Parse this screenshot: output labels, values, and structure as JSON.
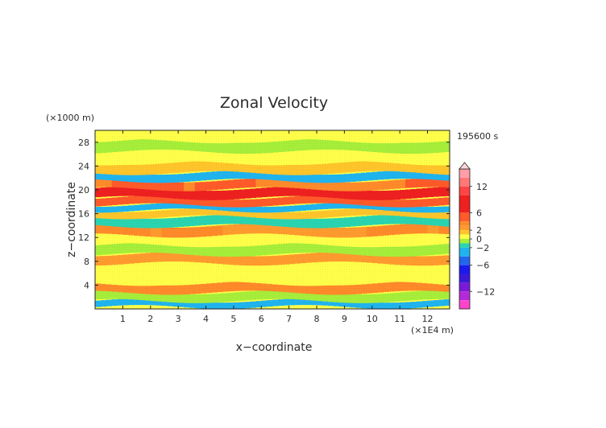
{
  "chart_data": {
    "type": "heatmap",
    "title": "Zonal Velocity",
    "xlabel": "x−coordinate",
    "ylabel": "z−coordinate",
    "x_unit": "(×1E4 m)",
    "y_unit": "(×1000 m)",
    "time_label": "195600 s",
    "xlim": [
      0,
      12.8
    ],
    "ylim": [
      0,
      30
    ],
    "x_ticks": [
      "1",
      "2",
      "3",
      "4",
      "5",
      "6",
      "7",
      "8",
      "9",
      "10",
      "11",
      "12"
    ],
    "y_ticks": [
      "4",
      "8",
      "12",
      "16",
      "20",
      "24",
      "28"
    ],
    "grid": false,
    "colorbar": {
      "placement": "right",
      "tick_labels": [
        "12",
        "6",
        "2",
        "0",
        "−2",
        "−6",
        "−12"
      ],
      "levels": [
        {
          "from": 14,
          "to": 16,
          "color": "#ff9ea8"
        },
        {
          "from": 12,
          "to": 14,
          "color": "#ff7878"
        },
        {
          "from": 10,
          "to": 12,
          "color": "#ff4444"
        },
        {
          "from": 8,
          "to": 10,
          "color": "#ee2020"
        },
        {
          "from": 6,
          "to": 8,
          "color": "#ee2020"
        },
        {
          "from": 4,
          "to": 6,
          "color": "#ff5a2a"
        },
        {
          "from": 3,
          "to": 4,
          "color": "#ff8a2a"
        },
        {
          "from": 2,
          "to": 3,
          "color": "#ff9b2e"
        },
        {
          "from": 1,
          "to": 2,
          "color": "#ffc52a"
        },
        {
          "from": 0,
          "to": 1,
          "color": "#ffff4a"
        },
        {
          "from": -1,
          "to": 0,
          "color": "#a6ee3a"
        },
        {
          "from": -2,
          "to": -1,
          "color": "#2ad4b0"
        },
        {
          "from": -4,
          "to": -2,
          "color": "#20b4ee"
        },
        {
          "from": -6,
          "to": -4,
          "color": "#2266ee"
        },
        {
          "from": -8,
          "to": -6,
          "color": "#1a1aee"
        },
        {
          "from": -10,
          "to": -8,
          "color": "#3a1ad8"
        },
        {
          "from": -12,
          "to": -10,
          "color": "#7a1ad8"
        },
        {
          "from": -14,
          "to": -12,
          "color": "#b42ad8"
        },
        {
          "from": -16,
          "to": -14,
          "color": "#ff44cc"
        }
      ]
    },
    "bands": [
      {
        "z": 0.8,
        "min": -4,
        "max": -2
      },
      {
        "z": 2.0,
        "min": -1,
        "max": 0
      },
      {
        "z": 3.6,
        "min": 3,
        "max": 4
      },
      {
        "z": 5.0,
        "min": 0,
        "max": 1
      },
      {
        "z": 7.0,
        "min": 0,
        "max": 1
      },
      {
        "z": 8.4,
        "min": 2,
        "max": 3
      },
      {
        "z": 10.0,
        "min": -1,
        "max": 0
      },
      {
        "z": 11.6,
        "min": 0,
        "max": 1
      },
      {
        "z": 13.2,
        "min": 2,
        "max": 4
      },
      {
        "z": 14.8,
        "min": -2,
        "max": -1
      },
      {
        "z": 16.2,
        "min": 1,
        "max": 2
      },
      {
        "z": 17.0,
        "min": -4,
        "max": -2
      },
      {
        "z": 18.0,
        "min": 4,
        "max": 6
      },
      {
        "z": 19.4,
        "min": 6,
        "max": 8
      },
      {
        "z": 21.0,
        "min": 3,
        "max": 5
      },
      {
        "z": 22.2,
        "min": -4,
        "max": -2
      },
      {
        "z": 23.6,
        "min": 1,
        "max": 2
      },
      {
        "z": 25.5,
        "min": 0,
        "max": 1
      },
      {
        "z": 27.5,
        "min": -1,
        "max": 0
      },
      {
        "z": 29.0,
        "min": 0,
        "max": 1
      }
    ]
  }
}
